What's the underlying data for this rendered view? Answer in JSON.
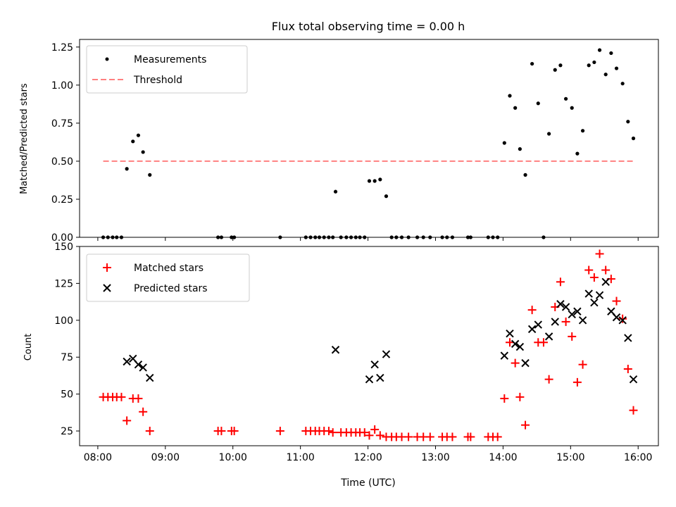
{
  "chart_data": [
    {
      "type": "scatter",
      "title": "Flux total observing time = 0.00 h",
      "xlabel": "",
      "ylabel": "Matched/Predicted stars",
      "xlim": [
        7.73,
        16.3
      ],
      "ylim": [
        0,
        1.3
      ],
      "xticks": [
        8,
        9,
        10,
        11,
        12,
        13,
        14,
        15,
        16
      ],
      "yticks": [
        0,
        0.25,
        0.5,
        0.75,
        1.0,
        1.25
      ],
      "ytick_labels": [
        "0.00",
        "0.25",
        "0.50",
        "0.75",
        "1.00",
        "1.25"
      ],
      "legend_position": "upper-left",
      "legend": [
        "Measurements",
        "Threshold"
      ],
      "series": [
        {
          "name": "Measurements",
          "color": "#000000",
          "marker": "dot",
          "points": [
            [
              8.08,
              0
            ],
            [
              8.15,
              0
            ],
            [
              8.22,
              0
            ],
            [
              8.28,
              0
            ],
            [
              8.35,
              0
            ],
            [
              8.43,
              0.45
            ],
            [
              8.52,
              0.63
            ],
            [
              8.6,
              0.67
            ],
            [
              8.67,
              0.56
            ],
            [
              8.77,
              0.41
            ],
            [
              9.78,
              0
            ],
            [
              9.83,
              0
            ],
            [
              9.98,
              0
            ],
            [
              10.02,
              0
            ],
            [
              10.7,
              0
            ],
            [
              11.08,
              0
            ],
            [
              11.15,
              0
            ],
            [
              11.22,
              0
            ],
            [
              11.28,
              0
            ],
            [
              11.35,
              0
            ],
            [
              11.42,
              0
            ],
            [
              11.48,
              0
            ],
            [
              11.52,
              0.3
            ],
            [
              11.6,
              0
            ],
            [
              11.68,
              0
            ],
            [
              11.75,
              0
            ],
            [
              11.82,
              0
            ],
            [
              11.88,
              0
            ],
            [
              11.95,
              0
            ],
            [
              12.02,
              0.37
            ],
            [
              12.1,
              0.37
            ],
            [
              12.18,
              0.38
            ],
            [
              12.27,
              0.27
            ],
            [
              12.35,
              0
            ],
            [
              12.42,
              0
            ],
            [
              12.5,
              0
            ],
            [
              12.6,
              0
            ],
            [
              12.73,
              0
            ],
            [
              12.82,
              0
            ],
            [
              12.92,
              0
            ],
            [
              13.1,
              0
            ],
            [
              13.17,
              0
            ],
            [
              13.25,
              0
            ],
            [
              13.48,
              0
            ],
            [
              13.52,
              0
            ],
            [
              13.78,
              0
            ],
            [
              13.85,
              0
            ],
            [
              13.92,
              0
            ],
            [
              14.02,
              0.62
            ],
            [
              14.1,
              0.93
            ],
            [
              14.18,
              0.85
            ],
            [
              14.25,
              0.58
            ],
            [
              14.33,
              0.41
            ],
            [
              14.43,
              1.14
            ],
            [
              14.52,
              0.88
            ],
            [
              14.6,
              0
            ],
            [
              14.68,
              0.68
            ],
            [
              14.77,
              1.1
            ],
            [
              14.85,
              1.13
            ],
            [
              14.93,
              0.91
            ],
            [
              15.02,
              0.85
            ],
            [
              15.1,
              0.55
            ],
            [
              15.18,
              0.7
            ],
            [
              15.27,
              1.13
            ],
            [
              15.35,
              1.15
            ],
            [
              15.43,
              1.23
            ],
            [
              15.52,
              1.07
            ],
            [
              15.6,
              1.21
            ],
            [
              15.68,
              1.11
            ],
            [
              15.77,
              1.01
            ],
            [
              15.85,
              0.76
            ],
            [
              15.93,
              0.65
            ]
          ]
        },
        {
          "name": "Threshold",
          "color": "#ff8080",
          "style": "dashed",
          "line": [
            [
              8.08,
              0.5
            ],
            [
              15.93,
              0.5
            ]
          ]
        }
      ]
    },
    {
      "type": "scatter",
      "title": "",
      "xlabel": "Time (UTC)",
      "ylabel": "Count",
      "xlim": [
        7.73,
        16.3
      ],
      "ylim": [
        15,
        150
      ],
      "xticks": [
        8,
        9,
        10,
        11,
        12,
        13,
        14,
        15,
        16
      ],
      "xtick_labels": [
        "08:00",
        "09:00",
        "10:00",
        "11:00",
        "12:00",
        "13:00",
        "14:00",
        "15:00",
        "16:00"
      ],
      "yticks": [
        25,
        50,
        75,
        100,
        125,
        150
      ],
      "ytick_labels": [
        "25",
        "50",
        "75",
        "100",
        "125",
        "150"
      ],
      "legend_position": "upper-left",
      "legend": [
        "Matched stars",
        "Predicted stars"
      ],
      "series": [
        {
          "name": "Matched stars",
          "color": "#ff0000",
          "marker": "plus",
          "points": [
            [
              8.08,
              48
            ],
            [
              8.15,
              48
            ],
            [
              8.22,
              48
            ],
            [
              8.28,
              48
            ],
            [
              8.35,
              48
            ],
            [
              8.43,
              32
            ],
            [
              8.52,
              47
            ],
            [
              8.6,
              47
            ],
            [
              8.67,
              38
            ],
            [
              8.77,
              25
            ],
            [
              9.78,
              25
            ],
            [
              9.83,
              25
            ],
            [
              9.98,
              25
            ],
            [
              10.02,
              25
            ],
            [
              10.7,
              25
            ],
            [
              11.08,
              25
            ],
            [
              11.15,
              25
            ],
            [
              11.22,
              25
            ],
            [
              11.28,
              25
            ],
            [
              11.35,
              25
            ],
            [
              11.42,
              25
            ],
            [
              11.48,
              24
            ],
            [
              11.6,
              24
            ],
            [
              11.68,
              24
            ],
            [
              11.75,
              24
            ],
            [
              11.82,
              24
            ],
            [
              11.88,
              24
            ],
            [
              11.95,
              24
            ],
            [
              12.02,
              22
            ],
            [
              12.1,
              26
            ],
            [
              12.18,
              22
            ],
            [
              12.27,
              21
            ],
            [
              12.35,
              21
            ],
            [
              12.42,
              21
            ],
            [
              12.5,
              21
            ],
            [
              12.6,
              21
            ],
            [
              12.73,
              21
            ],
            [
              12.82,
              21
            ],
            [
              12.92,
              21
            ],
            [
              13.1,
              21
            ],
            [
              13.17,
              21
            ],
            [
              13.25,
              21
            ],
            [
              13.48,
              21
            ],
            [
              13.52,
              21
            ],
            [
              13.78,
              21
            ],
            [
              13.85,
              21
            ],
            [
              13.92,
              21
            ],
            [
              14.02,
              47
            ],
            [
              14.1,
              85
            ],
            [
              14.18,
              71
            ],
            [
              14.25,
              48
            ],
            [
              14.33,
              29
            ],
            [
              14.43,
              107
            ],
            [
              14.52,
              85
            ],
            [
              14.6,
              85
            ],
            [
              14.68,
              60
            ],
            [
              14.77,
              109
            ],
            [
              14.85,
              126
            ],
            [
              14.93,
              99
            ],
            [
              15.02,
              89
            ],
            [
              15.1,
              58
            ],
            [
              15.18,
              70
            ],
            [
              15.27,
              134
            ],
            [
              15.35,
              129
            ],
            [
              15.43,
              145
            ],
            [
              15.52,
              134
            ],
            [
              15.6,
              128
            ],
            [
              15.68,
              113
            ],
            [
              15.77,
              101
            ],
            [
              15.85,
              67
            ],
            [
              15.93,
              39
            ]
          ]
        },
        {
          "name": "Predicted stars",
          "color": "#000000",
          "marker": "x",
          "points": [
            [
              8.43,
              72
            ],
            [
              8.52,
              74
            ],
            [
              8.6,
              70
            ],
            [
              8.67,
              68
            ],
            [
              8.77,
              61
            ],
            [
              11.52,
              80
            ],
            [
              12.02,
              60
            ],
            [
              12.1,
              70
            ],
            [
              12.18,
              61
            ],
            [
              12.27,
              77
            ],
            [
              14.02,
              76
            ],
            [
              14.1,
              91
            ],
            [
              14.18,
              84
            ],
            [
              14.25,
              82
            ],
            [
              14.33,
              71
            ],
            [
              14.43,
              94
            ],
            [
              14.52,
              97
            ],
            [
              14.68,
              89
            ],
            [
              14.77,
              99
            ],
            [
              14.85,
              111
            ],
            [
              14.93,
              109
            ],
            [
              15.02,
              104
            ],
            [
              15.1,
              106
            ],
            [
              15.18,
              100
            ],
            [
              15.27,
              118
            ],
            [
              15.35,
              112
            ],
            [
              15.43,
              117
            ],
            [
              15.52,
              126
            ],
            [
              15.6,
              106
            ],
            [
              15.68,
              102
            ],
            [
              15.77,
              100
            ],
            [
              15.85,
              88
            ],
            [
              15.93,
              60
            ]
          ]
        }
      ]
    }
  ]
}
